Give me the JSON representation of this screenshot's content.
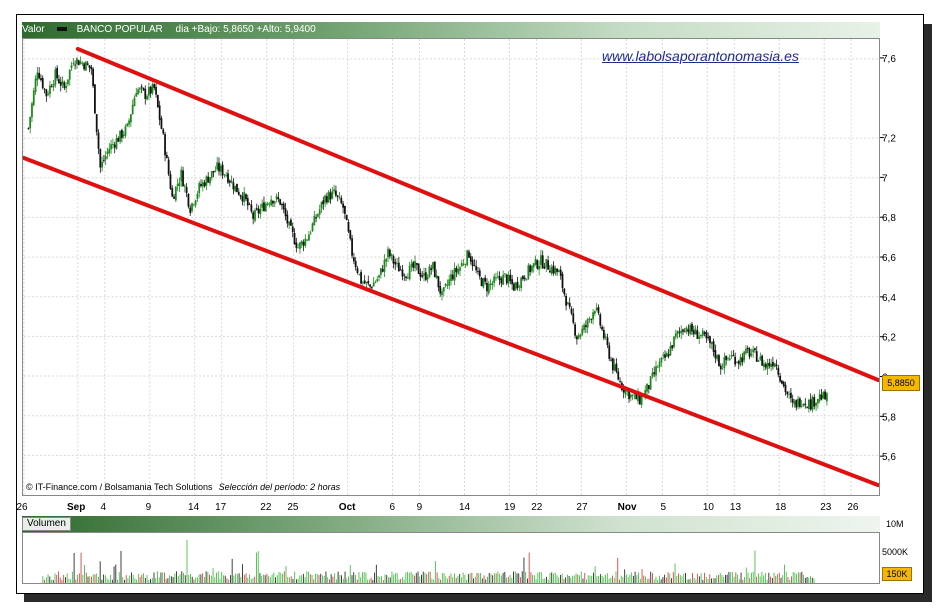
{
  "header": {
    "series_label": "Valor",
    "series_name": "BANCO POPULAR",
    "stats": "dia +Bajo: 5,8650 +Alto: 5,9400"
  },
  "watermark": "www.labolsaporantonomasia.es",
  "footer": {
    "source": "© IT-Finance.com / Bolsamania Tech Solutions",
    "period": "Selección del período: 2 horas"
  },
  "last_price_label": "5,8850",
  "volume": {
    "title": "Volumen",
    "axis_labels": [
      "10M",
      "5000K"
    ],
    "current_label": "150K"
  },
  "colors": {
    "trend_line": "#e01010",
    "candle_up": "#1e8a1e",
    "candle_down": "#111111",
    "vol_green": "#44bb44",
    "vol_red": "#d04040",
    "vol_black": "#222222",
    "badge": "#f5b800"
  },
  "chart_data": {
    "type": "candlestick",
    "y_ticks": [
      "7,6",
      "7,2",
      "7",
      "6,8",
      "6,6",
      "6,4",
      "6,2",
      "6",
      "5,8",
      "5,6"
    ],
    "y_tick_values": [
      7.6,
      7.2,
      7.0,
      6.8,
      6.6,
      6.4,
      6.2,
      6.0,
      5.8,
      5.6
    ],
    "ylim": [
      5.4,
      7.7
    ],
    "x_ticks": [
      {
        "label": "26",
        "day": 0,
        "bold": false
      },
      {
        "label": "Sep",
        "day": 6,
        "bold": true
      },
      {
        "label": "4",
        "day": 9,
        "bold": false
      },
      {
        "label": "9",
        "day": 14,
        "bold": false
      },
      {
        "label": "14",
        "day": 19,
        "bold": false
      },
      {
        "label": "17",
        "day": 22,
        "bold": false
      },
      {
        "label": "22",
        "day": 27,
        "bold": false
      },
      {
        "label": "25",
        "day": 30,
        "bold": false
      },
      {
        "label": "Oct",
        "day": 36,
        "bold": true
      },
      {
        "label": "6",
        "day": 41,
        "bold": false
      },
      {
        "label": "9",
        "day": 44,
        "bold": false
      },
      {
        "label": "14",
        "day": 49,
        "bold": false
      },
      {
        "label": "19",
        "day": 54,
        "bold": false
      },
      {
        "label": "22",
        "day": 57,
        "bold": false
      },
      {
        "label": "27",
        "day": 62,
        "bold": false
      },
      {
        "label": "Nov",
        "day": 67,
        "bold": true
      },
      {
        "label": "5",
        "day": 71,
        "bold": false
      },
      {
        "label": "10",
        "day": 76,
        "bold": false
      },
      {
        "label": "13",
        "day": 79,
        "bold": false
      },
      {
        "label": "18",
        "day": 84,
        "bold": false
      },
      {
        "label": "23",
        "day": 89,
        "bold": false
      },
      {
        "label": "26",
        "day": 92,
        "bold": false
      }
    ],
    "x_domain": [
      0,
      95
    ],
    "close_path": [
      [
        0.5,
        7.25
      ],
      [
        1.5,
        7.55
      ],
      [
        2.5,
        7.42
      ],
      [
        3.5,
        7.52
      ],
      [
        4.5,
        7.45
      ],
      [
        5.5,
        7.6
      ],
      [
        6.5,
        7.58
      ],
      [
        7.5,
        7.55
      ],
      [
        8.5,
        7.05
      ],
      [
        9.5,
        7.15
      ],
      [
        10.5,
        7.2
      ],
      [
        11.5,
        7.25
      ],
      [
        12.5,
        7.45
      ],
      [
        13.5,
        7.42
      ],
      [
        14.5,
        7.45
      ],
      [
        15.5,
        7.2
      ],
      [
        16.5,
        6.9
      ],
      [
        17.5,
        7.02
      ],
      [
        18.5,
        6.85
      ],
      [
        19.5,
        6.95
      ],
      [
        20.5,
        7.0
      ],
      [
        21.5,
        7.05
      ],
      [
        22.5,
        7.02
      ],
      [
        23.5,
        6.95
      ],
      [
        24.5,
        6.9
      ],
      [
        25.5,
        6.8
      ],
      [
        26.5,
        6.85
      ],
      [
        27.5,
        6.9
      ],
      [
        28.5,
        6.88
      ],
      [
        29.5,
        6.75
      ],
      [
        30.5,
        6.65
      ],
      [
        31.5,
        6.7
      ],
      [
        32.5,
        6.8
      ],
      [
        33.5,
        6.9
      ],
      [
        34.5,
        6.92
      ],
      [
        35.5,
        6.85
      ],
      [
        36.5,
        6.62
      ],
      [
        37.5,
        6.48
      ],
      [
        38.5,
        6.45
      ],
      [
        39.5,
        6.5
      ],
      [
        40.5,
        6.62
      ],
      [
        41.5,
        6.55
      ],
      [
        42.5,
        6.52
      ],
      [
        43.5,
        6.55
      ],
      [
        44.5,
        6.5
      ],
      [
        45.5,
        6.55
      ],
      [
        46.5,
        6.4
      ],
      [
        47.5,
        6.5
      ],
      [
        48.5,
        6.55
      ],
      [
        49.5,
        6.62
      ],
      [
        50.5,
        6.5
      ],
      [
        51.5,
        6.45
      ],
      [
        52.5,
        6.48
      ],
      [
        53.5,
        6.5
      ],
      [
        54.5,
        6.45
      ],
      [
        55.5,
        6.5
      ],
      [
        56.5,
        6.55
      ],
      [
        57.5,
        6.58
      ],
      [
        58.5,
        6.55
      ],
      [
        59.5,
        6.52
      ],
      [
        60.5,
        6.35
      ],
      [
        61.5,
        6.2
      ],
      [
        62.5,
        6.25
      ],
      [
        63.5,
        6.35
      ],
      [
        64.5,
        6.2
      ],
      [
        65.5,
        6.05
      ],
      [
        66.5,
        5.95
      ],
      [
        67.5,
        5.9
      ],
      [
        68.5,
        5.88
      ],
      [
        69.5,
        5.95
      ],
      [
        70.5,
        6.05
      ],
      [
        71.5,
        6.1
      ],
      [
        72.5,
        6.2
      ],
      [
        73.5,
        6.25
      ],
      [
        74.5,
        6.22
      ],
      [
        75.5,
        6.2
      ],
      [
        76.5,
        6.15
      ],
      [
        77.5,
        6.05
      ],
      [
        78.5,
        6.1
      ],
      [
        79.5,
        6.08
      ],
      [
        80.5,
        6.12
      ],
      [
        81.5,
        6.1
      ],
      [
        82.5,
        6.05
      ],
      [
        83.5,
        6.08
      ],
      [
        84.5,
        5.95
      ],
      [
        85.5,
        5.85
      ],
      [
        86.5,
        5.88
      ],
      [
        87.5,
        5.86
      ],
      [
        88.5,
        5.9
      ],
      [
        89.5,
        5.88
      ]
    ],
    "channel_upper": [
      [
        6,
        7.65
      ],
      [
        95,
        5.98
      ]
    ],
    "channel_lower": [
      [
        0,
        7.1
      ],
      [
        95,
        5.45
      ]
    ]
  }
}
